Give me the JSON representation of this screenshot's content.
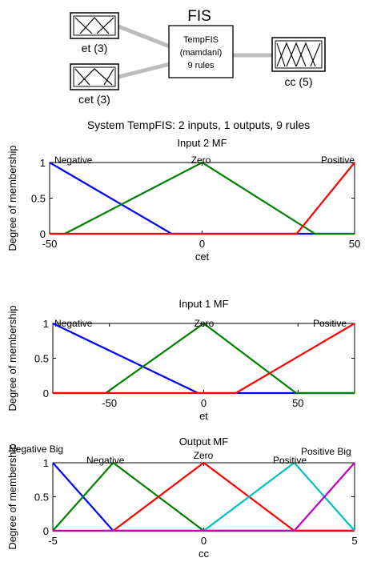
{
  "fis": {
    "title": "FIS",
    "input1": {
      "label": "et (3)",
      "mfs": 3
    },
    "input2": {
      "label": "cet (3)",
      "mfs": 3
    },
    "output": {
      "label": "cc (5)",
      "mfs": 5
    },
    "system_lines": [
      "TempFIS",
      "(mamdani)",
      "9 rules"
    ]
  },
  "chart_data": [
    {
      "type": "line",
      "suptitle": "System TempFIS: 2 inputs, 1 outputs, 9 rules",
      "title": "Input 2 MF",
      "xlabel": "cet",
      "ylabel": "Degree of membership",
      "xlim": [
        -50,
        50
      ],
      "ylim": [
        0,
        1
      ],
      "xticks": [
        -50,
        0,
        50
      ],
      "yticks": [
        0,
        0.5,
        1
      ],
      "series": [
        {
          "name": "Negative",
          "color": "#0000ff",
          "x": [
            -50,
            -10
          ],
          "y": [
            1,
            0
          ]
        },
        {
          "name": "Zero",
          "color": "#008000",
          "x": [
            -45,
            0,
            37
          ],
          "y": [
            0,
            1,
            0
          ]
        },
        {
          "name": "Positive",
          "color": "#ff0000",
          "x": [
            31,
            50
          ],
          "y": [
            0,
            1
          ]
        }
      ]
    },
    {
      "type": "line",
      "title": "Input 1 MF",
      "xlabel": "et",
      "ylabel": "Degree of membership",
      "xlim": [
        -80,
        80
      ],
      "ylim": [
        0,
        1
      ],
      "xticks": [
        -50,
        0,
        50
      ],
      "yticks": [
        0,
        0.5,
        1
      ],
      "series": [
        {
          "name": "Negative",
          "color": "#0000ff",
          "x": [
            -80,
            -3
          ],
          "y": [
            1,
            0
          ]
        },
        {
          "name": "Zero",
          "color": "#008000",
          "x": [
            -52,
            0,
            49
          ],
          "y": [
            0,
            1,
            0
          ]
        },
        {
          "name": "Positive",
          "color": "#ff0000",
          "x": [
            17,
            80
          ],
          "y": [
            0,
            1
          ]
        }
      ]
    },
    {
      "type": "line",
      "title": "Output MF",
      "xlabel": "cc",
      "ylabel": "Degree of membership",
      "xlim": [
        -5,
        5
      ],
      "ylim": [
        0,
        1
      ],
      "xticks": [
        -5,
        0,
        5
      ],
      "yticks": [
        0,
        0.5,
        1
      ],
      "series": [
        {
          "name": "Negative Big",
          "color": "#0000ff",
          "x": [
            -5,
            -3
          ],
          "y": [
            1,
            0
          ]
        },
        {
          "name": "Negative",
          "color": "#008000",
          "x": [
            -5,
            -3,
            0
          ],
          "y": [
            0,
            1,
            0
          ]
        },
        {
          "name": "Zero",
          "color": "#ff0000",
          "x": [
            -3,
            0,
            3
          ],
          "y": [
            0,
            1,
            0
          ]
        },
        {
          "name": "Positive",
          "color": "#00bfbf",
          "x": [
            0,
            3,
            5
          ],
          "y": [
            0,
            1,
            0
          ]
        },
        {
          "name": "Positive Big",
          "color": "#bf00bf",
          "x": [
            3,
            5
          ],
          "y": [
            0,
            1
          ]
        }
      ]
    }
  ]
}
